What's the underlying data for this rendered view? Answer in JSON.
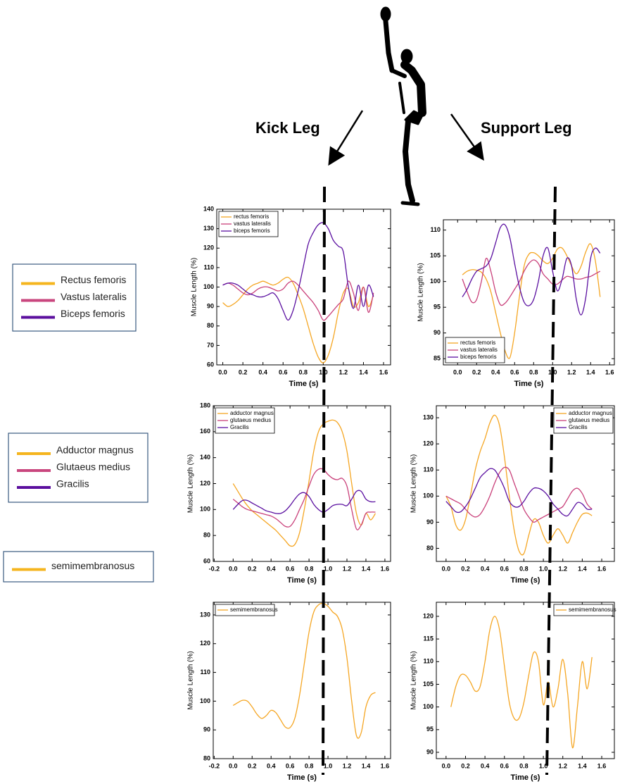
{
  "header": {
    "kick_label": "Kick Leg",
    "support_label": "Support Leg"
  },
  "side_legends": [
    {
      "items": [
        {
          "label": "Rectus femoris",
          "color": "#f5b51e"
        },
        {
          "label": "Vastus lateralis",
          "color": "#c9467e"
        },
        {
          "label": "Biceps femoris",
          "color": "#5b0f9e"
        }
      ]
    },
    {
      "items": [
        {
          "label": "Adductor magnus",
          "color": "#f5b51e"
        },
        {
          "label": "Glutaeus medius",
          "color": "#c9467e"
        },
        {
          "label": "Gracilis",
          "color": "#5b0f9e"
        }
      ]
    },
    {
      "items": [
        {
          "label": "semimembranosus",
          "color": "#f5b51e"
        }
      ]
    }
  ],
  "chart_data": [
    {
      "type": "line",
      "xlabel": "Time (s)",
      "ylabel": "Muscle Length (%)",
      "legend": "upper left",
      "xlim": [
        -0.06,
        1.67
      ],
      "ylim": [
        60,
        140
      ],
      "xticks": [
        {
          "value": 0,
          "label": "0.0"
        },
        0.2,
        0.4,
        0.6,
        0.8,
        {
          "value": 1,
          "label": "1.0"
        },
        1.2,
        1.4,
        1.6
      ],
      "yticks": [
        60,
        70,
        80,
        90,
        100,
        110,
        120,
        130,
        140
      ],
      "x": [
        0,
        0.05,
        0.1,
        0.15,
        0.2,
        0.25,
        0.3,
        0.35,
        0.4,
        0.45,
        0.5,
        0.55,
        0.6,
        0.65,
        0.7,
        0.75,
        0.8,
        0.85,
        0.9,
        0.95,
        1.0,
        1.05,
        1.1,
        1.15,
        1.2,
        1.25,
        1.3,
        1.35,
        1.4,
        1.45,
        1.5
      ],
      "series": [
        {
          "name": "rectus femoris",
          "color": "#f5a623",
          "values": [
            92,
            90,
            91,
            93,
            96,
            99,
            101,
            102,
            103,
            102,
            101,
            102,
            104,
            105,
            102,
            96,
            89,
            80,
            71,
            64,
            61,
            65,
            74,
            87,
            97,
            99,
            90,
            92,
            100,
            90,
            96
          ]
        },
        {
          "name": "vastus lateralis",
          "color": "#c9407a",
          "values": [
            101,
            102,
            101,
            99,
            97,
            96,
            97,
            99,
            100,
            100,
            99,
            98,
            99,
            102,
            103,
            101,
            98,
            95,
            92,
            88,
            83,
            85,
            88,
            91,
            94,
            103,
            97,
            88,
            100,
            87,
            97
          ]
        },
        {
          "name": "biceps femoris",
          "color": "#5a0fa0",
          "values": [
            101,
            102,
            102,
            101,
            99,
            97,
            96,
            95,
            95,
            96,
            97,
            94,
            88,
            83,
            88,
            98,
            110,
            122,
            128,
            132,
            133,
            130,
            124,
            121,
            118,
            100,
            89,
            101,
            90,
            101,
            95
          ]
        }
      ]
    },
    {
      "type": "line",
      "xlabel": "Time (s)",
      "ylabel": "Muscle Length (%)",
      "legend": "lower left",
      "xlim": [
        -0.15,
        1.65
      ],
      "ylim": [
        83.8,
        112
      ],
      "xticks": [
        {
          "value": 0,
          "label": "0.0"
        },
        0.2,
        0.4,
        0.6,
        0.8,
        {
          "value": 1,
          "label": "1.0"
        },
        1.2,
        1.4,
        1.6
      ],
      "yticks": [
        85,
        90,
        95,
        100,
        105,
        110
      ],
      "x": [
        0.05,
        0.1,
        0.15,
        0.2,
        0.25,
        0.3,
        0.35,
        0.4,
        0.45,
        0.5,
        0.55,
        0.6,
        0.65,
        0.7,
        0.75,
        0.8,
        0.85,
        0.9,
        0.95,
        1.0,
        1.05,
        1.1,
        1.15,
        1.2,
        1.25,
        1.3,
        1.35,
        1.4,
        1.45,
        1.5
      ],
      "series": [
        {
          "name": "rectus femoris",
          "color": "#f5a623",
          "values": [
            101.3,
            102,
            102.3,
            102.2,
            101.8,
            100.5,
            98,
            94,
            90,
            86.5,
            85.2,
            90,
            97,
            103,
            105.3,
            105.6,
            105,
            104,
            103.5,
            104.5,
            106.3,
            106.5,
            105,
            103,
            101.5,
            103,
            105.8,
            107.3,
            104,
            97
          ]
        },
        {
          "name": "vastus lateralis",
          "color": "#c9407a",
          "values": [
            100.5,
            98,
            96,
            96.5,
            100,
            104.5,
            102,
            98,
            95.5,
            95.8,
            97,
            98.5,
            100,
            102,
            103.5,
            104.2,
            103.5,
            101.5,
            100.5,
            99.5,
            99.5,
            100.3,
            101,
            100.8,
            100.5,
            100.5,
            100.8,
            101,
            101.5,
            102
          ]
        },
        {
          "name": "biceps femoris",
          "color": "#5a0fa0",
          "values": [
            97,
            98.5,
            100.5,
            102,
            102.5,
            103,
            104.5,
            107.5,
            110.5,
            111,
            108.5,
            103.5,
            99,
            96,
            95.3,
            96.5,
            100,
            105,
            106.5,
            102,
            98.2,
            100.5,
            104.5,
            103,
            96.5,
            93.5,
            97,
            104.5,
            106.5,
            105.5
          ]
        }
      ]
    },
    {
      "type": "line",
      "xlabel": "Time (s)",
      "ylabel": "Muscle Length (%)",
      "legend": "upper left",
      "xlim": [
        -0.21,
        1.66
      ],
      "ylim": [
        60,
        180
      ],
      "xticks": [
        -0.2,
        {
          "value": 0,
          "label": "0.0"
        },
        0.2,
        0.4,
        0.6,
        0.8,
        {
          "value": 1,
          "label": "1.0"
        },
        1.2,
        1.4,
        1.6
      ],
      "yticks": [
        60,
        80,
        100,
        120,
        140,
        160,
        180
      ],
      "x": [
        0,
        0.05,
        0.1,
        0.15,
        0.2,
        0.25,
        0.3,
        0.35,
        0.4,
        0.45,
        0.5,
        0.55,
        0.6,
        0.65,
        0.7,
        0.75,
        0.8,
        0.85,
        0.9,
        0.95,
        1.0,
        1.05,
        1.1,
        1.15,
        1.2,
        1.25,
        1.3,
        1.35,
        1.4,
        1.45,
        1.5
      ],
      "series": [
        {
          "name": "adductor magnus",
          "color": "#f5a623",
          "values": [
            120,
            114,
            108,
            103,
            99,
            96,
            93,
            90,
            87,
            84,
            80,
            76,
            72,
            73,
            82,
            100,
            122,
            145,
            160,
            166,
            168,
            169,
            167,
            160,
            145,
            120,
            97,
            88,
            97,
            92,
            97
          ]
        },
        {
          "name": "glutaeus medius",
          "color": "#c9407a",
          "values": [
            108,
            105,
            102,
            100,
            99,
            98,
            97,
            96,
            95,
            93,
            90,
            87,
            87,
            92,
            100,
            108,
            118,
            127,
            131,
            131,
            127,
            124,
            123,
            124,
            118,
            100,
            85,
            88,
            97,
            98,
            98
          ]
        },
        {
          "name": "Gracilis",
          "color": "#5a0fa0",
          "values": [
            100,
            104,
            107,
            107,
            105,
            103,
            101,
            99,
            98,
            97,
            97,
            99,
            103,
            108,
            112,
            113,
            110,
            104,
            100,
            98,
            100,
            103,
            104,
            104,
            103,
            108,
            114,
            114,
            108,
            106,
            106
          ]
        }
      ]
    },
    {
      "type": "line",
      "xlabel": "Time (s)",
      "ylabel": "Muscle Length (%)",
      "legend": "upper right",
      "xlim": [
        -0.1,
        1.73
      ],
      "ylim": [
        75,
        134.6
      ],
      "xticks": [
        {
          "value": 0,
          "label": "0.0"
        },
        0.2,
        0.4,
        0.6,
        0.8,
        {
          "value": 1,
          "label": "1.0"
        },
        1.2,
        1.4,
        1.6
      ],
      "yticks": [
        80,
        90,
        100,
        110,
        120,
        130
      ],
      "x": [
        0,
        0.05,
        0.1,
        0.15,
        0.2,
        0.25,
        0.3,
        0.35,
        0.4,
        0.45,
        0.5,
        0.55,
        0.6,
        0.65,
        0.7,
        0.75,
        0.8,
        0.85,
        0.9,
        0.95,
        1.0,
        1.05,
        1.1,
        1.15,
        1.2,
        1.25,
        1.3,
        1.35,
        1.4,
        1.45,
        1.5
      ],
      "series": [
        {
          "name": "adductor magnus",
          "color": "#f5a623",
          "values": [
            100,
            96,
            89,
            87,
            91,
            100,
            110,
            117,
            122,
            128,
            131,
            127,
            115,
            100,
            87,
            79,
            78,
            85,
            91,
            90,
            85,
            82,
            85,
            87.5,
            85,
            82,
            86,
            90,
            93,
            93.5,
            92.5
          ]
        },
        {
          "name": "glutaeus medius",
          "color": "#c9407a",
          "values": [
            100,
            99,
            98,
            97,
            95,
            93,
            92,
            93,
            96,
            100,
            105,
            109,
            111,
            110,
            105,
            100,
            95,
            92,
            90,
            91,
            92,
            93,
            94,
            95,
            96,
            99,
            102,
            103,
            101,
            97,
            95
          ]
        },
        {
          "name": "Gracilis",
          "color": "#5a0fa0",
          "values": [
            98,
            96,
            94,
            94,
            96,
            99,
            103,
            107,
            109,
            110.5,
            110,
            107,
            103,
            98,
            96,
            96,
            98,
            101,
            103,
            103,
            102,
            100,
            97,
            95,
            93,
            92.5,
            95,
            97.5,
            97,
            95,
            95
          ]
        }
      ]
    },
    {
      "type": "line",
      "xlabel": "Time (s)",
      "ylabel": "Muscle Length (%)",
      "legend": "upper left",
      "xlim": [
        -0.21,
        1.66
      ],
      "ylim": [
        80,
        134.4
      ],
      "xticks": [
        -0.2,
        {
          "value": 0,
          "label": "0.0"
        },
        0.2,
        0.4,
        0.6,
        0.8,
        {
          "value": 1,
          "label": "1.0"
        },
        1.2,
        1.4,
        1.6
      ],
      "yticks": [
        80,
        90,
        100,
        110,
        120,
        130
      ],
      "x": [
        0,
        0.05,
        0.1,
        0.15,
        0.2,
        0.25,
        0.3,
        0.35,
        0.4,
        0.45,
        0.5,
        0.55,
        0.6,
        0.65,
        0.7,
        0.75,
        0.8,
        0.85,
        0.9,
        0.95,
        1.0,
        1.05,
        1.1,
        1.15,
        1.2,
        1.25,
        1.3,
        1.35,
        1.4,
        1.45,
        1.5
      ],
      "series": [
        {
          "name": "semimembranosus",
          "color": "#f5a623",
          "values": [
            98.5,
            99.5,
            100.3,
            100,
            98,
            95.5,
            94,
            95,
            96.8,
            96,
            93.5,
            91,
            90.8,
            94,
            102,
            113,
            124,
            131,
            133.5,
            134,
            133,
            131,
            129.5,
            125,
            115,
            100,
            88,
            89,
            98,
            102,
            103
          ]
        }
      ]
    },
    {
      "type": "line",
      "xlabel": "Time (s)",
      "ylabel": "Muscle Length (%)",
      "legend": "upper right",
      "xlim": [
        -0.1,
        1.73
      ],
      "ylim": [
        88.6,
        123.1
      ],
      "xticks": [
        {
          "value": 0,
          "label": "0.0"
        },
        0.2,
        0.4,
        0.6,
        0.8,
        {
          "value": 1,
          "label": "1.0"
        },
        1.2,
        1.4,
        1.6
      ],
      "yticks": [
        90,
        95,
        100,
        105,
        110,
        115,
        120
      ],
      "x": [
        0.05,
        0.1,
        0.15,
        0.2,
        0.25,
        0.3,
        0.35,
        0.4,
        0.45,
        0.5,
        0.55,
        0.6,
        0.65,
        0.7,
        0.75,
        0.8,
        0.85,
        0.9,
        0.95,
        1.0,
        1.05,
        1.1,
        1.15,
        1.2,
        1.25,
        1.3,
        1.35,
        1.4,
        1.45,
        1.5
      ],
      "series": [
        {
          "name": "semimembranosus",
          "color": "#f5a623",
          "values": [
            100,
            104.5,
            107,
            107,
            105.5,
            103.5,
            104.5,
            110,
            117,
            120,
            117,
            109,
            101,
            97.5,
            97.5,
            101,
            107,
            112,
            110,
            100.5,
            105.5,
            100,
            104,
            110.5,
            103,
            91,
            100,
            110,
            104,
            111
          ]
        }
      ]
    }
  ]
}
